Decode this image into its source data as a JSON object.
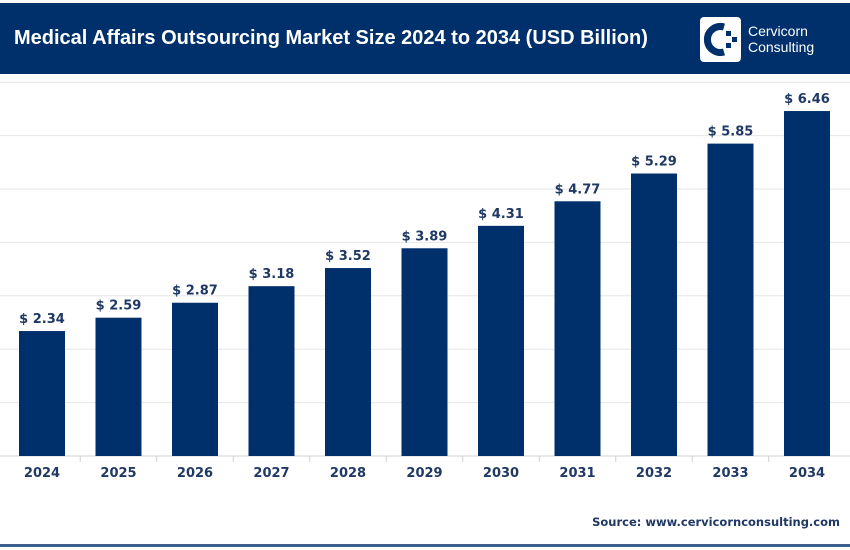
{
  "header": {
    "title": "Medical Affairs Outsourcing Market Size 2024 to 2034 (USD Billion)",
    "logo_line1": "Cervicorn",
    "logo_line2": "Consulting",
    "background": "#00306b"
  },
  "source": "Source: www.cervicornconsulting.com",
  "chart_data": {
    "type": "bar",
    "title": "Medical Affairs Outsourcing Market Size 2024 to 2034 (USD Billion)",
    "categories": [
      "2024",
      "2025",
      "2026",
      "2027",
      "2028",
      "2029",
      "2030",
      "2031",
      "2032",
      "2033",
      "2034"
    ],
    "values": [
      2.34,
      2.59,
      2.87,
      3.18,
      3.52,
      3.89,
      4.31,
      4.77,
      5.29,
      5.85,
      6.46
    ],
    "data_label_prefix": "$ ",
    "ylim": [
      0,
      7
    ],
    "grid": true,
    "bar_color": "#00306b",
    "label_color": "#1f3864"
  }
}
